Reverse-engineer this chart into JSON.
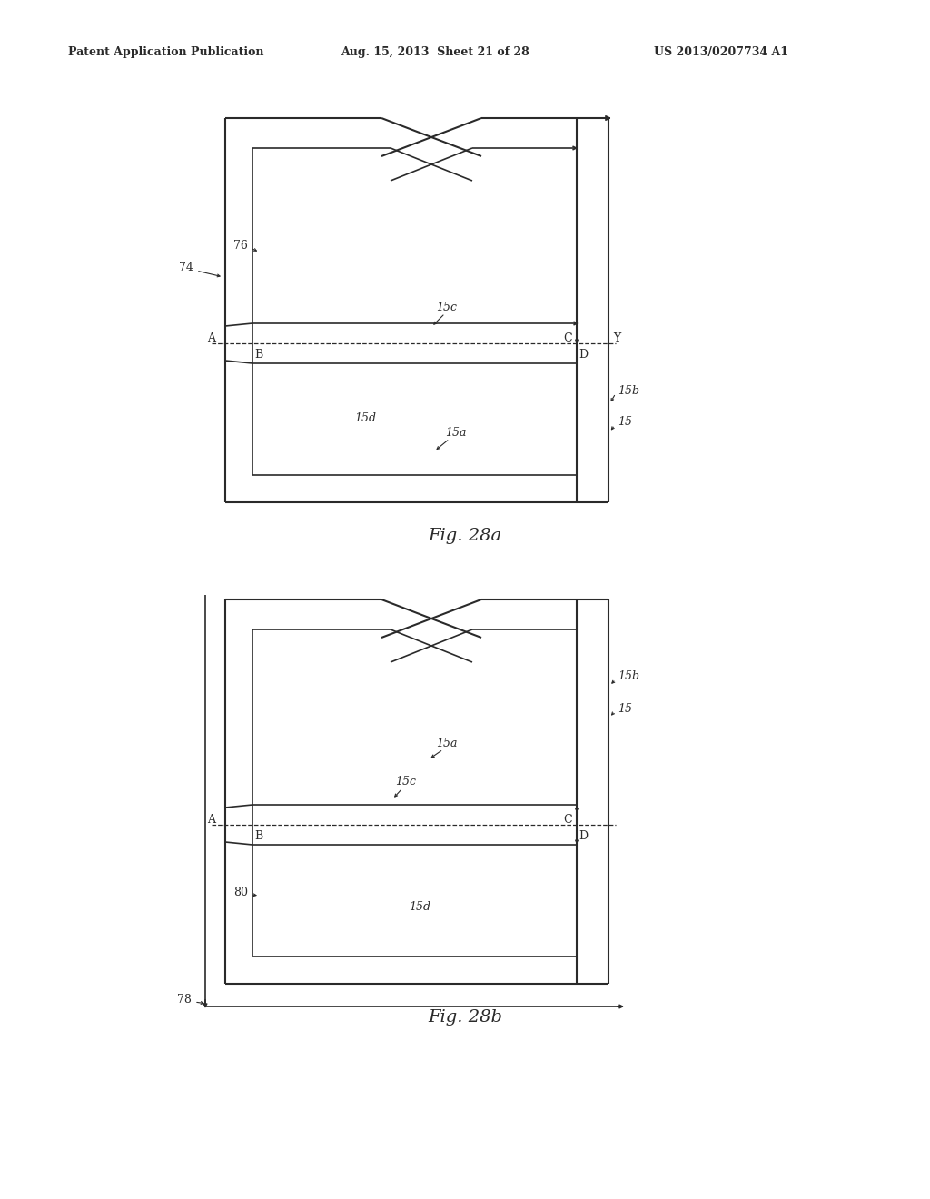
{
  "bg_color": "#ffffff",
  "line_color": "#2a2a2a",
  "header_text": "Patent Application Publication",
  "header_date": "Aug. 15, 2013  Sheet 21 of 28",
  "header_patent": "US 2013/0207734 A1",
  "fig_a_label": "Fig. 28a",
  "fig_b_label": "Fig. 28b"
}
